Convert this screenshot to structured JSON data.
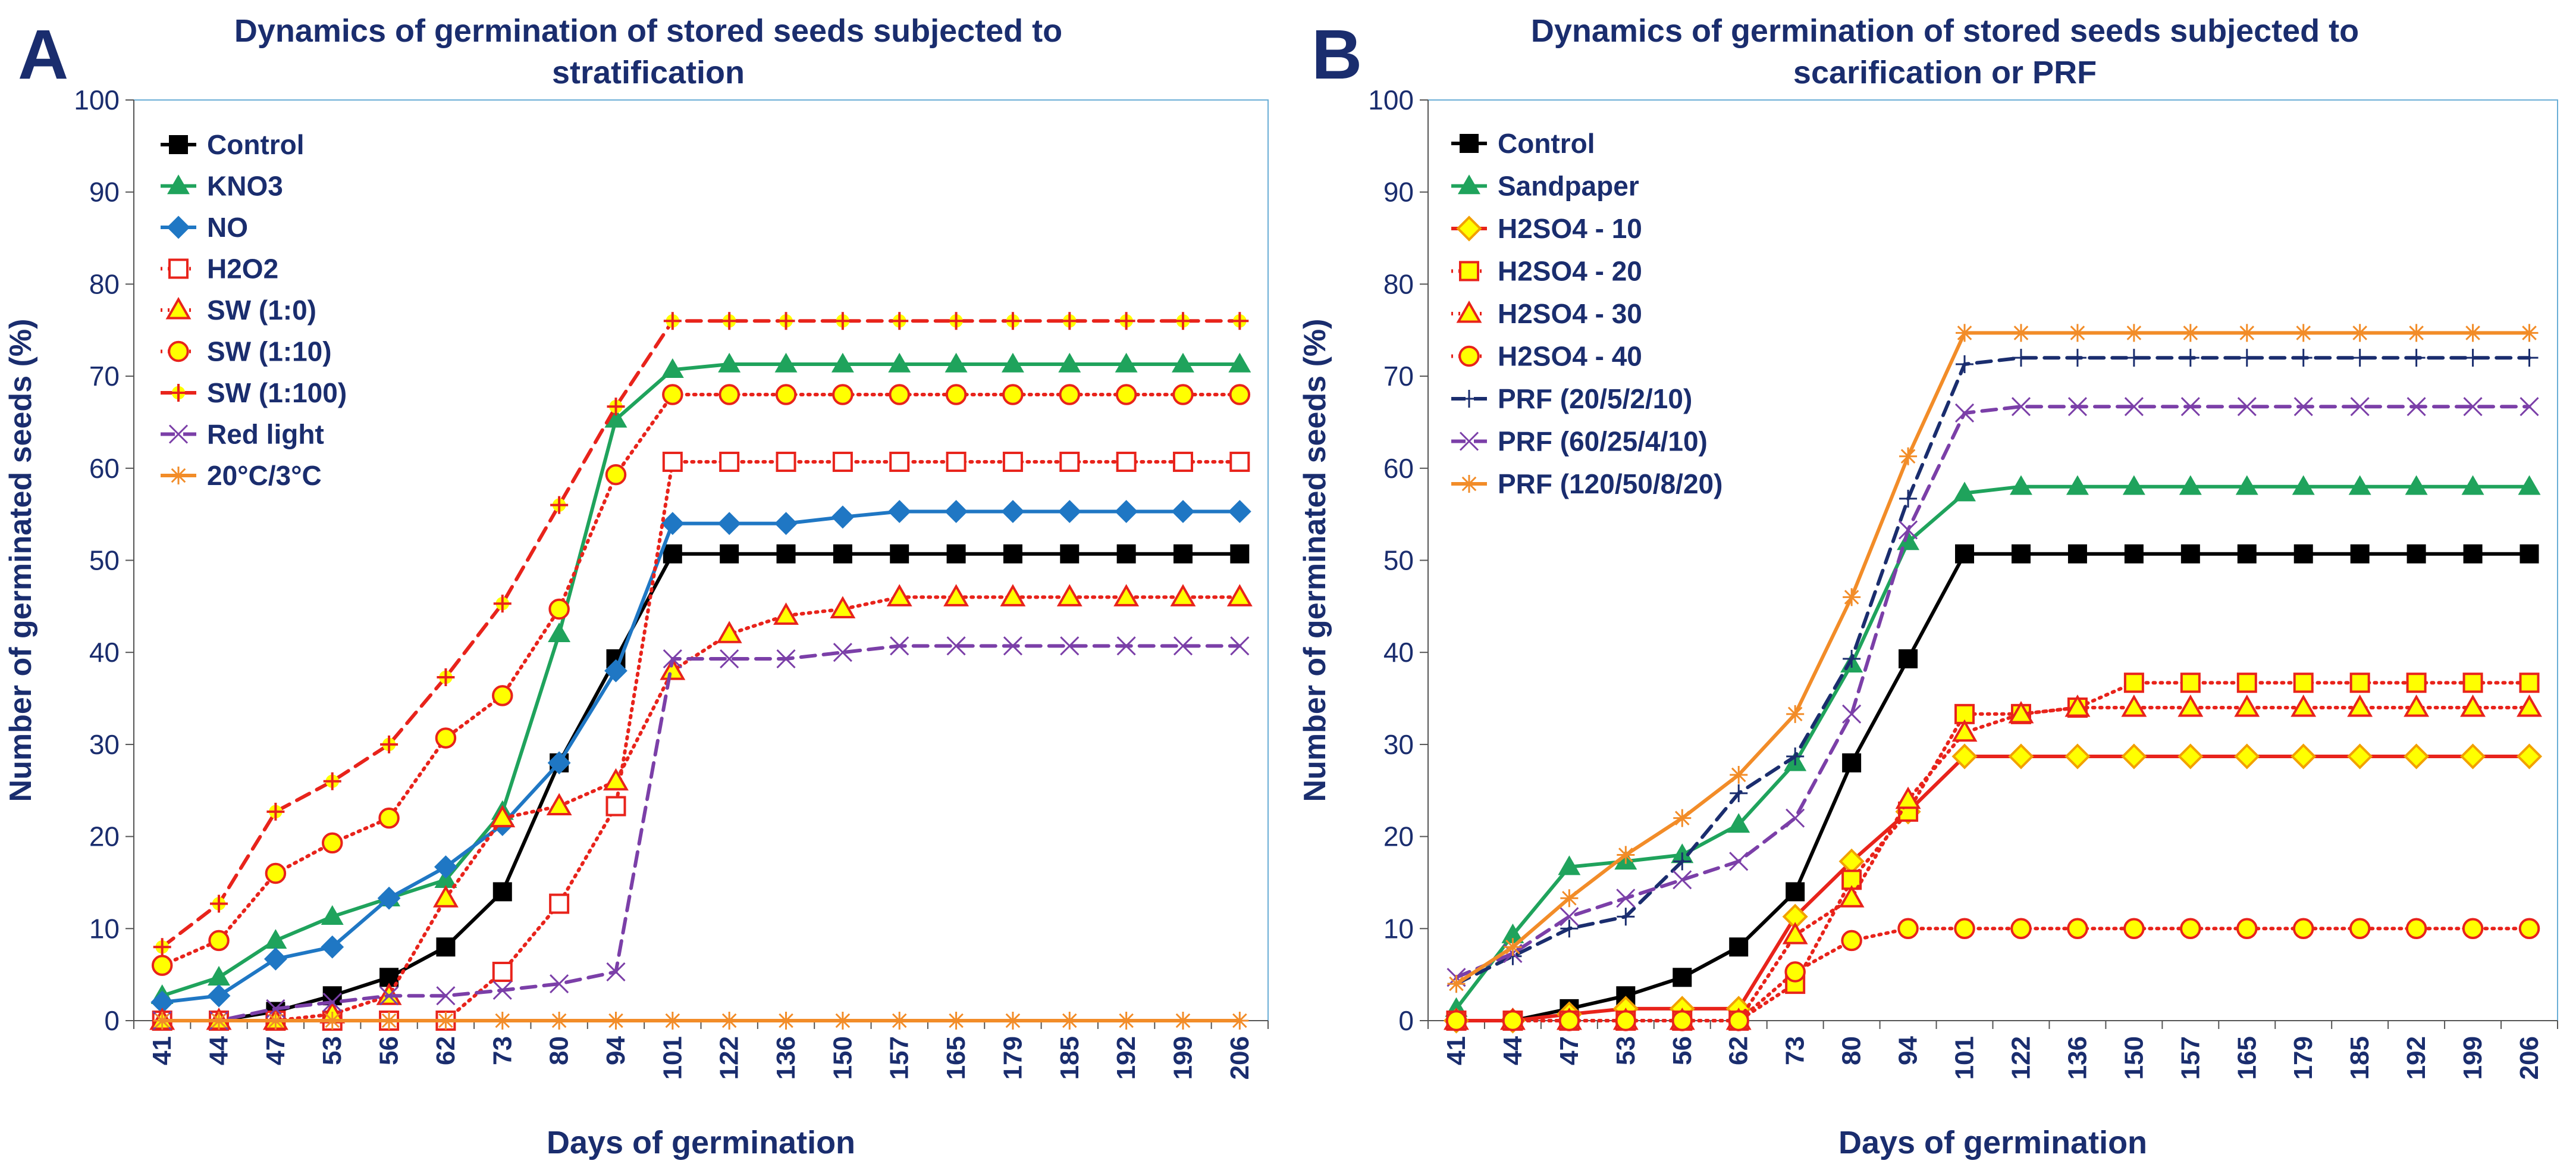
{
  "chart_data": [
    {
      "type": "line",
      "panel_letter": "A",
      "title": "Dynamics of germination of stored seeds subjected to",
      "title_line2": "stratification",
      "xlabel": "Days of germination",
      "ylabel": "Number of germinated seeds (%)",
      "ylim": [
        0,
        100
      ],
      "yticks": [
        0,
        10,
        20,
        30,
        40,
        50,
        60,
        70,
        80,
        90,
        100
      ],
      "categories": [
        "41",
        "44",
        "47",
        "53",
        "56",
        "62",
        "73",
        "80",
        "94",
        "101",
        "122",
        "136",
        "150",
        "157",
        "165",
        "179",
        "185",
        "192",
        "199",
        "206"
      ],
      "series": [
        {
          "name": "Control",
          "color": "#000000",
          "marker": "square",
          "dash": "solid",
          "values": [
            0,
            0,
            1,
            2.7,
            4.7,
            8,
            14,
            28,
            39.3,
            50.7,
            50.7,
            50.7,
            50.7,
            50.7,
            50.7,
            50.7,
            50.7,
            50.7,
            50.7,
            50.7
          ]
        },
        {
          "name": "KNO3",
          "color": "#1fa35c",
          "marker": "triangle",
          "dash": "solid",
          "values": [
            2.7,
            4.7,
            8.7,
            11.3,
            13.3,
            15.3,
            22.7,
            42,
            65.3,
            70.7,
            71.3,
            71.3,
            71.3,
            71.3,
            71.3,
            71.3,
            71.3,
            71.3,
            71.3,
            71.3
          ]
        },
        {
          "name": "NO",
          "color": "#1f77c4",
          "marker": "diamond",
          "dash": "solid",
          "values": [
            2,
            2.7,
            6.7,
            8,
            13.3,
            16.7,
            21.3,
            28,
            38,
            54,
            54,
            54,
            54.7,
            55.3,
            55.3,
            55.3,
            55.3,
            55.3,
            55.3,
            55.3
          ]
        },
        {
          "name": "H2O2",
          "color": "#e8231b",
          "marker": "square-open",
          "dash": "dot",
          "values": [
            0,
            0,
            0,
            0,
            0,
            0,
            5.3,
            12.7,
            23.3,
            60.7,
            60.7,
            60.7,
            60.7,
            60.7,
            60.7,
            60.7,
            60.7,
            60.7,
            60.7,
            60.7
          ]
        },
        {
          "name": "SW (1:0)",
          "color": "#e8231b",
          "marker": "triangle-yellow",
          "dash": "dot",
          "values": [
            0,
            0,
            0,
            0.7,
            2.7,
            13.3,
            22,
            23.3,
            26,
            38,
            42,
            44,
            44.7,
            46,
            46,
            46,
            46,
            46,
            46,
            46
          ]
        },
        {
          "name": "SW (1:10)",
          "color": "#e8231b",
          "marker": "circle-yellow",
          "dash": "dot",
          "values": [
            6,
            8.7,
            16,
            19.3,
            22,
            30.7,
            35.3,
            44.7,
            59.3,
            68,
            68,
            68,
            68,
            68,
            68,
            68,
            68,
            68,
            68,
            68
          ]
        },
        {
          "name": "SW (1:100)",
          "color": "#e8231b",
          "marker": "plus-yellow",
          "dash": "dash",
          "values": [
            8,
            12.7,
            22.7,
            26,
            30,
            37.3,
            45.3,
            56,
            66.7,
            76,
            76,
            76,
            76,
            76,
            76,
            76,
            76,
            76,
            76,
            76
          ]
        },
        {
          "name": "Red light",
          "color": "#7b3fa8",
          "marker": "x",
          "dash": "dash",
          "values": [
            0,
            0,
            1.3,
            2,
            2.7,
            2.7,
            3.3,
            4,
            5.3,
            39.3,
            39.3,
            39.3,
            40,
            40.7,
            40.7,
            40.7,
            40.7,
            40.7,
            40.7,
            40.7
          ]
        },
        {
          "name": "20°C/3°C",
          "color": "#f28c28",
          "marker": "star",
          "dash": "solid",
          "values": [
            0,
            0,
            0,
            0,
            0,
            0,
            0,
            0,
            0,
            0,
            0,
            0,
            0,
            0,
            0,
            0,
            0,
            0,
            0,
            0
          ]
        }
      ]
    },
    {
      "type": "line",
      "panel_letter": "B",
      "title": "Dynamics of germination of stored seeds subjected to",
      "title_line2": "scarification or PRF",
      "xlabel": "Days of germination",
      "ylabel": "Number of germinated seeds (%)",
      "ylim": [
        0,
        100
      ],
      "yticks": [
        0,
        10,
        20,
        30,
        40,
        50,
        60,
        70,
        80,
        90,
        100
      ],
      "categories": [
        "41",
        "44",
        "47",
        "53",
        "56",
        "62",
        "73",
        "80",
        "94",
        "101",
        "122",
        "136",
        "150",
        "157",
        "165",
        "179",
        "185",
        "192",
        "199",
        "206"
      ],
      "series": [
        {
          "name": "Control",
          "color": "#000000",
          "marker": "square",
          "dash": "solid",
          "values": [
            0,
            0,
            1.3,
            2.7,
            4.7,
            8,
            14,
            28,
            39.3,
            50.7,
            50.7,
            50.7,
            50.7,
            50.7,
            50.7,
            50.7,
            50.7,
            50.7,
            50.7,
            50.7
          ]
        },
        {
          "name": "Sandpaper",
          "color": "#1fa35c",
          "marker": "triangle",
          "dash": "solid",
          "values": [
            1.3,
            9.3,
            16.7,
            17.3,
            18,
            21.3,
            28,
            38.7,
            52,
            57.3,
            58,
            58,
            58,
            58,
            58,
            58,
            58,
            58,
            58,
            58
          ]
        },
        {
          "name": "H2SO4 - 10",
          "color": "#e8231b",
          "marker": "diamond-yellow",
          "dash": "solid",
          "values": [
            0,
            0,
            0.7,
            1.3,
            1.3,
            1.3,
            11.3,
            17.3,
            22.7,
            28.7,
            28.7,
            28.7,
            28.7,
            28.7,
            28.7,
            28.7,
            28.7,
            28.7,
            28.7,
            28.7
          ]
        },
        {
          "name": "H2SO4 - 20",
          "color": "#e8231b",
          "marker": "square-yellow",
          "dash": "dot",
          "values": [
            0,
            0,
            0,
            0,
            0,
            0,
            4,
            15.3,
            22.7,
            33.3,
            33.3,
            34,
            36.7,
            36.7,
            36.7,
            36.7,
            36.7,
            36.7,
            36.7,
            36.7
          ]
        },
        {
          "name": "H2SO4 - 30",
          "color": "#e8231b",
          "marker": "triangle-yellow",
          "dash": "dot",
          "values": [
            0,
            0,
            0,
            0,
            0,
            0,
            9.3,
            13.3,
            24,
            31.3,
            33.3,
            34,
            34,
            34,
            34,
            34,
            34,
            34,
            34,
            34
          ]
        },
        {
          "name": "H2SO4 - 40",
          "color": "#e8231b",
          "marker": "circle-yellow",
          "dash": "dot",
          "values": [
            0,
            0,
            0,
            0,
            0,
            0,
            5.3,
            8.7,
            10,
            10,
            10,
            10,
            10,
            10,
            10,
            10,
            10,
            10,
            10,
            10
          ]
        },
        {
          "name": "PRF (20/5/2/10)",
          "color": "#1a2d6e",
          "marker": "plus",
          "dash": "dash",
          "values": [
            4,
            7,
            10,
            11.3,
            17.3,
            24.7,
            28.7,
            39.3,
            56.7,
            71.3,
            72,
            72,
            72,
            72,
            72,
            72,
            72,
            72,
            72,
            72
          ]
        },
        {
          "name": "PRF (60/25/4/10)",
          "color": "#7b3fa8",
          "marker": "x",
          "dash": "dash",
          "values": [
            4.7,
            7.3,
            11.3,
            13.3,
            15.3,
            17.3,
            22,
            33.3,
            53.3,
            66,
            66.7,
            66.7,
            66.7,
            66.7,
            66.7,
            66.7,
            66.7,
            66.7,
            66.7,
            66.7
          ]
        },
        {
          "name": "PRF (120/50/8/20)",
          "color": "#f28c28",
          "marker": "star",
          "dash": "solid",
          "values": [
            4,
            8,
            13.3,
            18,
            22,
            26.7,
            33.3,
            46,
            61.3,
            74.7,
            74.7,
            74.7,
            74.7,
            74.7,
            74.7,
            74.7,
            74.7,
            74.7,
            74.7,
            74.7
          ]
        }
      ]
    }
  ]
}
